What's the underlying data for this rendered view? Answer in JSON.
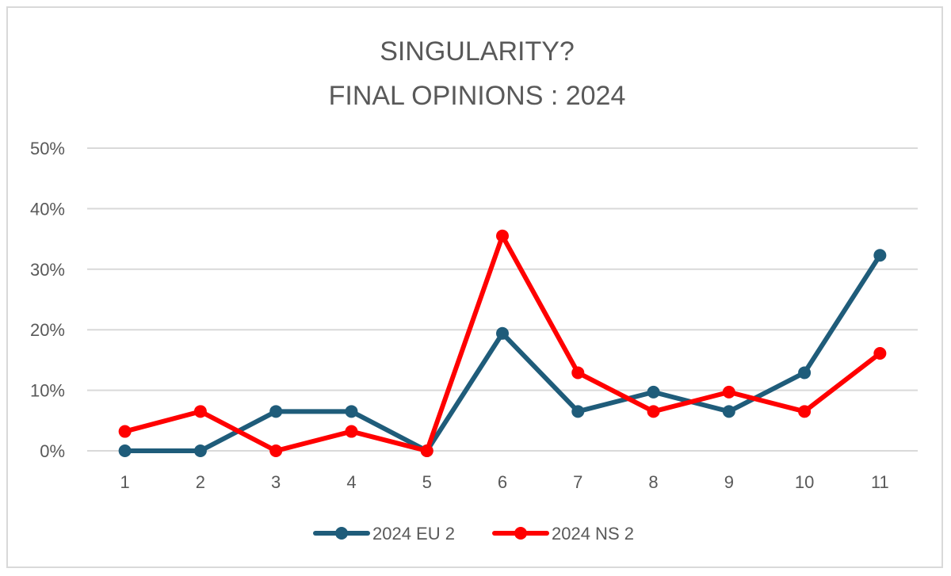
{
  "chart_data": {
    "type": "line",
    "title_lines": [
      "SINGULARITY?",
      "FINAL OPINIONS : 2024"
    ],
    "categories": [
      "1",
      "2",
      "3",
      "4",
      "5",
      "6",
      "7",
      "8",
      "9",
      "10",
      "11"
    ],
    "y_ticks": [
      "0%",
      "10%",
      "20%",
      "30%",
      "40%",
      "50%"
    ],
    "ylim": [
      0,
      50
    ],
    "grid": true,
    "legend_position": "bottom",
    "series": [
      {
        "name": "2024 EU 2",
        "color": "#1f5c7a",
        "values": [
          0,
          0,
          6.5,
          6.5,
          0,
          19.4,
          6.5,
          9.7,
          6.5,
          12.9,
          32.3
        ]
      },
      {
        "name": "2024 NS 2",
        "color": "#ff0000",
        "values": [
          3.2,
          6.5,
          0,
          3.2,
          0,
          35.5,
          12.9,
          6.5,
          9.7,
          6.5,
          16.1
        ]
      }
    ]
  }
}
